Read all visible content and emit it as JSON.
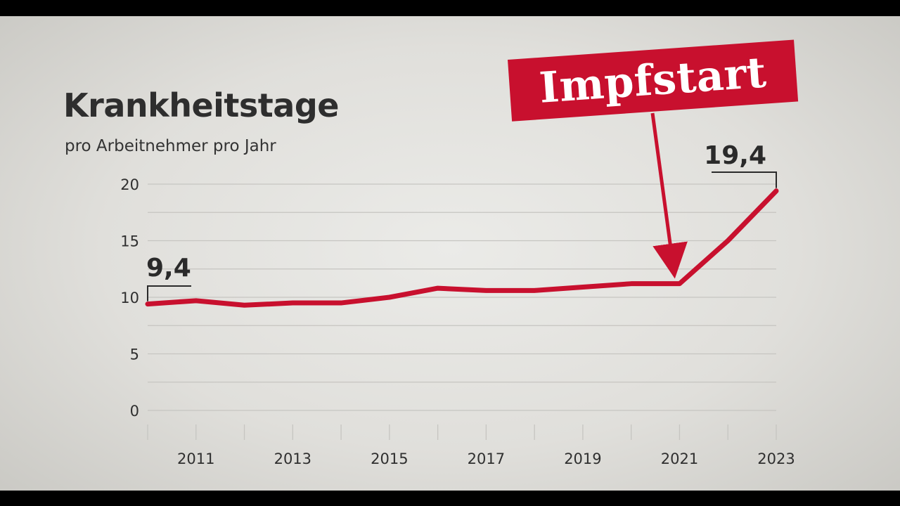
{
  "chart_data": {
    "type": "line",
    "title": "Krankheitstage",
    "subtitle": "pro Arbeitnehmer pro Jahr",
    "x": [
      2010,
      2011,
      2012,
      2013,
      2014,
      2015,
      2016,
      2017,
      2018,
      2019,
      2020,
      2021,
      2022,
      2023
    ],
    "series": [
      {
        "values": [
          9.4,
          9.7,
          9.3,
          9.5,
          9.5,
          10.0,
          10.8,
          10.6,
          10.6,
          10.9,
          11.2,
          11.2,
          15.0,
          19.4
        ],
        "color": "#c8102e"
      }
    ],
    "xticks": [
      2011,
      2013,
      2015,
      2017,
      2019,
      2021,
      2023
    ],
    "xtick_labels": [
      "2011",
      "2013",
      "2015",
      "2017",
      "2019",
      "2021",
      "2023"
    ],
    "yticks": [
      0,
      5,
      10,
      15,
      20
    ],
    "ytick_labels": [
      "0",
      "5",
      "10",
      "15",
      "20"
    ],
    "ylim": [
      0,
      20
    ],
    "xlim": [
      2010,
      2023
    ],
    "grid": true,
    "annotations": {
      "start_value": "9,4",
      "end_value": "19,4",
      "event_label": "Impfstart",
      "event_year": 2021
    },
    "colors": {
      "line": "#c8102e",
      "event_box": "#c8102e",
      "grid": "#c6c5c1",
      "text": "#2e2e2e"
    }
  }
}
